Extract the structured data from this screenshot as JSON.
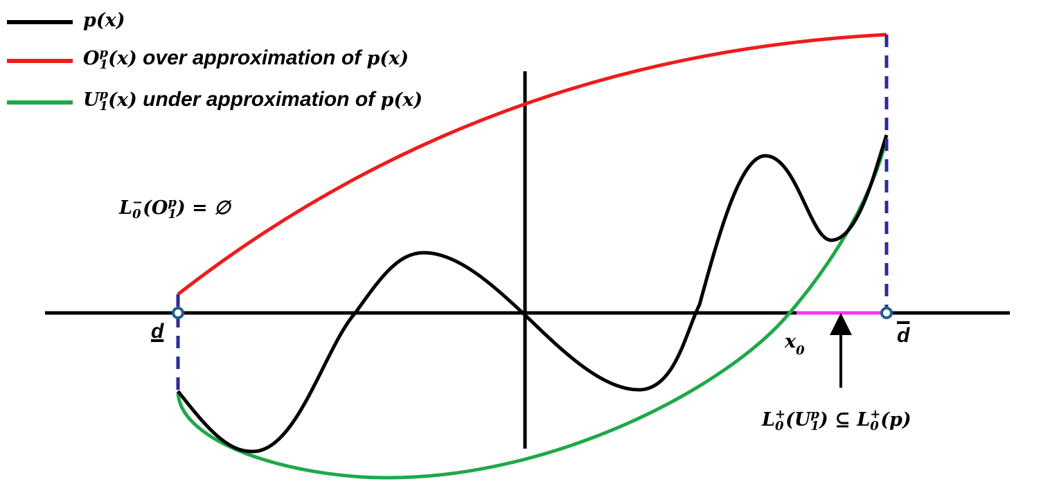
{
  "legend": [
    {
      "runs": [
        {
          "text": "p(x)",
          "math": true
        }
      ]
    },
    {
      "runs": [
        {
          "text": "O",
          "math": true
        },
        {
          "sup": "p",
          "sub": "1"
        },
        {
          "text": "(x)",
          "math": true
        },
        {
          "text": " over approximation of "
        },
        {
          "text": "p(x)",
          "math": true
        }
      ]
    },
    {
      "runs": [
        {
          "text": "U",
          "math": true
        },
        {
          "sup": "p",
          "sub": "1"
        },
        {
          "text": "(x)",
          "math": true
        },
        {
          "text": " under approximation of "
        },
        {
          "text": "p(x)",
          "math": true
        }
      ]
    }
  ],
  "annotations": {
    "empty_set": {
      "runs": [
        {
          "text": "L",
          "math": true
        },
        {
          "sup": "−",
          "sub": "0"
        },
        {
          "text": "(O",
          "math": true
        },
        {
          "sup": "p",
          "sub": "1"
        },
        {
          "text": ") =  ∅",
          "math": true
        }
      ]
    },
    "d_lower": {
      "runs": [
        {
          "text": "d"
        }
      ]
    },
    "d_upper": {
      "runs": [
        {
          "text": "d"
        }
      ]
    },
    "x0": {
      "runs": [
        {
          "text": "x",
          "math": true
        },
        {
          "sub": "0"
        }
      ]
    },
    "subset": {
      "runs": [
        {
          "text": "L",
          "math": true
        },
        {
          "sup": "+",
          "sub": "0"
        },
        {
          "text": "(U",
          "math": true
        },
        {
          "sup": "p",
          "sub": "1"
        },
        {
          "text": ")  ⊆ L",
          "math": true
        },
        {
          "sup": "+",
          "sub": "0"
        },
        {
          "text": "(p)",
          "math": true
        }
      ]
    }
  }
}
